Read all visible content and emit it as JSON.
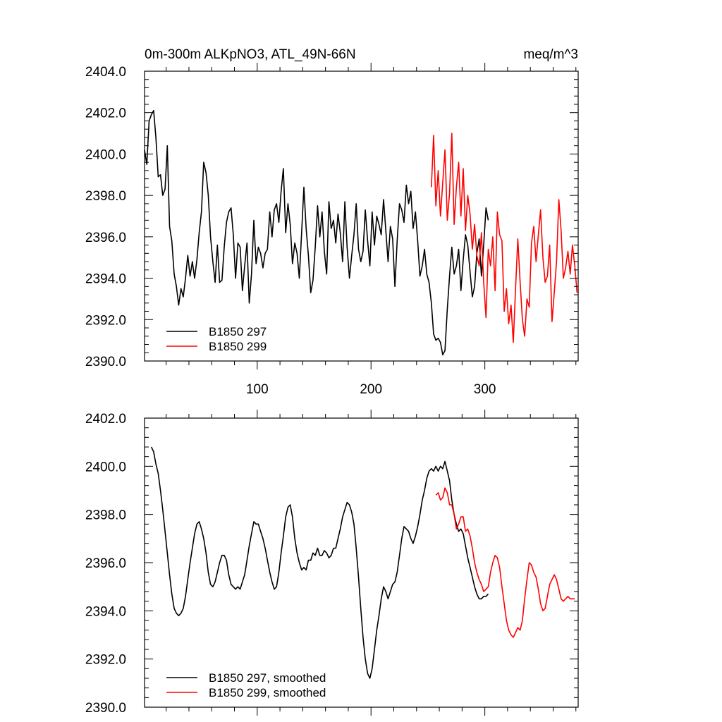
{
  "chart_data": [
    {
      "type": "line",
      "title_left": "0m-300m ALKpNO3, ATL_49N-66N",
      "title_right": "meq/m^3",
      "xlim": [
        1,
        382
      ],
      "ylim": [
        2390,
        2404
      ],
      "yticks": [
        2390.0,
        2392.0,
        2394.0,
        2396.0,
        2398.0,
        2400.0,
        2402.0,
        2404.0
      ],
      "ytick_labels": [
        "2390.0",
        "2392.0",
        "2394.0",
        "2396.0",
        "2398.0",
        "2400.0",
        "2402.0",
        "2404.0"
      ],
      "xticks": [
        100,
        200,
        300
      ],
      "xtick_labels": [
        "100",
        "200",
        "300"
      ],
      "xlabel": "",
      "ylabel": "",
      "legend": [
        "B1850 297",
        "B1850 299"
      ],
      "series": [
        {
          "name": "B1850 297",
          "color": "#000000",
          "x": [
            1,
            3,
            5,
            7,
            9,
            11,
            13,
            15,
            17,
            19,
            21,
            23,
            25,
            27,
            29,
            31,
            33,
            35,
            37,
            39,
            41,
            43,
            45,
            47,
            49,
            51,
            53,
            55,
            57,
            59,
            61,
            63,
            65,
            67,
            69,
            71,
            73,
            75,
            77,
            79,
            81,
            83,
            85,
            87,
            89,
            91,
            93,
            95,
            97,
            99,
            101,
            103,
            105,
            107,
            109,
            111,
            113,
            115,
            117,
            119,
            121,
            123,
            125,
            127,
            129,
            131,
            133,
            135,
            137,
            139,
            141,
            143,
            145,
            147,
            149,
            151,
            153,
            155,
            157,
            159,
            161,
            163,
            165,
            167,
            169,
            171,
            173,
            175,
            177,
            179,
            181,
            183,
            185,
            187,
            189,
            191,
            193,
            195,
            197,
            199,
            201,
            203,
            205,
            207,
            209,
            211,
            213,
            215,
            217,
            219,
            221,
            223,
            225,
            227,
            229,
            231,
            233,
            235,
            237,
            239,
            241,
            243,
            245,
            247,
            249,
            251,
            253,
            255,
            257,
            259,
            261,
            263,
            265,
            267,
            269,
            271,
            273,
            275,
            277,
            279,
            281,
            283,
            285,
            287,
            289,
            291,
            293,
            295,
            297,
            299,
            301,
            303
          ],
          "y": [
            2400.2,
            2399.5,
            2401.6,
            2401.9,
            2402.1,
            2400.8,
            2398.9,
            2399.0,
            2398.0,
            2398.3,
            2400.4,
            2396.5,
            2395.8,
            2394.2,
            2393.6,
            2392.7,
            2393.5,
            2393.1,
            2394.0,
            2395.1,
            2394.1,
            2394.8,
            2394.0,
            2394.9,
            2396.2,
            2397.2,
            2399.6,
            2399.1,
            2398.0,
            2396.0,
            2394.8,
            2393.8,
            2395.6,
            2393.8,
            2393.9,
            2395.5,
            2396.7,
            2397.2,
            2397.4,
            2396.1,
            2394.0,
            2395.7,
            2395.5,
            2393.4,
            2394.6,
            2395.7,
            2392.8,
            2394.2,
            2396.8,
            2394.7,
            2395.5,
            2395.2,
            2394.5,
            2395.2,
            2395.4,
            2397.2,
            2396.0,
            2397.3,
            2397.6,
            2396.7,
            2398.2,
            2399.3,
            2396.2,
            2397.6,
            2396.6,
            2394.7,
            2395.7,
            2395.2,
            2394.0,
            2396.2,
            2398.4,
            2396.4,
            2395.1,
            2393.3,
            2393.9,
            2395.5,
            2397.5,
            2396.0,
            2397.2,
            2395.3,
            2394.2,
            2397.7,
            2396.4,
            2396.8,
            2395.7,
            2397.1,
            2396.2,
            2394.8,
            2397.7,
            2395.5,
            2394.0,
            2395.1,
            2396.1,
            2397.6,
            2395.4,
            2394.8,
            2395.3,
            2397.3,
            2395.8,
            2394.6,
            2397.2,
            2395.6,
            2397.0,
            2396.6,
            2396.1,
            2397.8,
            2396.3,
            2394.8,
            2396.5,
            2395.9,
            2393.6,
            2395.8,
            2397.6,
            2397.3,
            2396.7,
            2398.5,
            2397.6,
            2398.2,
            2396.4,
            2397.2,
            2395.8,
            2394.1,
            2394.6,
            2395.4,
            2394.2,
            2393.8,
            2392.8,
            2391.3,
            2391.0,
            2391.1,
            2390.9,
            2390.3,
            2390.5,
            2392.5,
            2394.1,
            2395.5,
            2394.2,
            2394.6,
            2395.4,
            2393.4,
            2394.9,
            2396.1,
            2395.6,
            2394.3,
            2393.1,
            2393.6,
            2395.2,
            2395.9,
            2394.1,
            2395.6,
            2397.4,
            2396.8
          ]
        },
        {
          "name": "B1850 299",
          "color": "#ff0000",
          "x": [
            253,
            255,
            257,
            259,
            261,
            263,
            265,
            267,
            269,
            271,
            273,
            275,
            277,
            279,
            281,
            283,
            285,
            287,
            289,
            291,
            293,
            295,
            297,
            299,
            301,
            303,
            305,
            307,
            309,
            311,
            313,
            315,
            317,
            319,
            321,
            323,
            325,
            327,
            329,
            331,
            333,
            335,
            337,
            339,
            341,
            343,
            345,
            347,
            349,
            351,
            353,
            355,
            357,
            359,
            361,
            363,
            365,
            367,
            369,
            371,
            373,
            375,
            377,
            379,
            381
          ],
          "y": [
            2398.4,
            2400.9,
            2397.5,
            2399.2,
            2397.0,
            2398.6,
            2400.2,
            2396.8,
            2398.1,
            2401.0,
            2396.6,
            2398.4,
            2399.6,
            2397.0,
            2399.3,
            2396.3,
            2398.0,
            2397.1,
            2395.4,
            2396.6,
            2395.1,
            2394.6,
            2396.2,
            2393.8,
            2392.1,
            2395.4,
            2394.6,
            2396.0,
            2393.4,
            2397.2,
            2396.1,
            2395.8,
            2392.4,
            2393.5,
            2391.8,
            2392.7,
            2390.9,
            2393.5,
            2395.9,
            2393.8,
            2392.0,
            2391.2,
            2393.0,
            2392.6,
            2395.7,
            2396.5,
            2394.8,
            2396.1,
            2397.3,
            2395.0,
            2393.8,
            2394.1,
            2395.6,
            2391.9,
            2393.3,
            2394.8,
            2397.8,
            2396.3,
            2394.0,
            2394.5,
            2395.3,
            2394.2,
            2395.6,
            2394.6,
            2393.3
          ]
        }
      ]
    },
    {
      "type": "line",
      "title_left": "",
      "title_right": "",
      "xlim": [
        1,
        382
      ],
      "ylim": [
        2390,
        2402
      ],
      "yticks": [
        2390.0,
        2392.0,
        2394.0,
        2396.0,
        2398.0,
        2400.0,
        2402.0
      ],
      "ytick_labels": [
        "2390.0",
        "2392.0",
        "2394.0",
        "2396.0",
        "2398.0",
        "2400.0",
        "2402.0"
      ],
      "xticks": [
        100,
        200,
        300
      ],
      "xtick_labels": [],
      "xlabel": "",
      "ylabel": "",
      "legend": [
        "B1850 297, smoothed",
        "B1850 299, smoothed"
      ],
      "series": [
        {
          "name": "B1850 297, smoothed",
          "color": "#000000",
          "x": [
            7,
            9,
            11,
            13,
            15,
            17,
            19,
            21,
            23,
            25,
            27,
            29,
            31,
            33,
            35,
            37,
            39,
            41,
            43,
            45,
            47,
            49,
            51,
            53,
            55,
            57,
            59,
            61,
            63,
            65,
            67,
            69,
            71,
            73,
            75,
            77,
            79,
            81,
            83,
            85,
            87,
            89,
            91,
            93,
            95,
            97,
            99,
            101,
            103,
            105,
            107,
            109,
            111,
            113,
            115,
            117,
            119,
            121,
            123,
            125,
            127,
            129,
            131,
            133,
            135,
            137,
            139,
            141,
            143,
            145,
            147,
            149,
            151,
            153,
            155,
            157,
            159,
            161,
            163,
            165,
            167,
            169,
            171,
            173,
            175,
            177,
            179,
            181,
            183,
            185,
            187,
            189,
            191,
            193,
            195,
            197,
            199,
            201,
            203,
            205,
            207,
            209,
            211,
            213,
            215,
            217,
            219,
            221,
            223,
            225,
            227,
            229,
            231,
            233,
            235,
            237,
            239,
            241,
            243,
            245,
            247,
            249,
            251,
            253,
            255,
            257,
            259,
            261,
            263,
            265,
            267,
            269,
            271,
            273,
            275,
            277,
            279,
            281,
            283,
            285,
            287,
            289,
            291,
            293,
            295,
            297,
            299,
            301,
            303
          ],
          "y": [
            2400.8,
            2400.6,
            2400.1,
            2399.7,
            2399.0,
            2398.2,
            2397.3,
            2396.4,
            2395.5,
            2394.7,
            2394.1,
            2393.9,
            2393.8,
            2393.9,
            2394.1,
            2394.6,
            2395.3,
            2396.0,
            2396.6,
            2397.2,
            2397.6,
            2397.7,
            2397.4,
            2397.0,
            2396.4,
            2395.6,
            2395.1,
            2395.0,
            2395.2,
            2395.6,
            2396.0,
            2396.3,
            2396.3,
            2396.1,
            2395.5,
            2395.1,
            2395.0,
            2394.9,
            2395.0,
            2394.9,
            2395.2,
            2395.5,
            2396.1,
            2396.7,
            2397.2,
            2397.7,
            2397.6,
            2397.6,
            2397.3,
            2397.0,
            2396.6,
            2396.1,
            2395.6,
            2395.2,
            2394.9,
            2395.0,
            2395.6,
            2396.4,
            2397.1,
            2397.9,
            2398.3,
            2398.4,
            2397.9,
            2397.0,
            2396.4,
            2396.0,
            2395.7,
            2395.8,
            2395.7,
            2396.1,
            2396.1,
            2396.4,
            2396.3,
            2396.6,
            2396.3,
            2396.3,
            2396.5,
            2396.4,
            2396.2,
            2396.3,
            2396.6,
            2396.6,
            2397.0,
            2397.4,
            2397.9,
            2398.2,
            2398.5,
            2398.4,
            2398.1,
            2397.6,
            2396.6,
            2395.4,
            2394.1,
            2392.9,
            2392.0,
            2391.4,
            2391.2,
            2391.6,
            2392.4,
            2393.2,
            2393.8,
            2394.5,
            2395.0,
            2394.8,
            2394.5,
            2394.8,
            2395.1,
            2395.2,
            2395.6,
            2396.3,
            2397.0,
            2397.5,
            2397.4,
            2397.3,
            2397.0,
            2396.8,
            2397.1,
            2397.5,
            2398.0,
            2398.6,
            2399.0,
            2399.5,
            2399.8,
            2399.9,
            2399.8,
            2400.0,
            2399.8,
            2400.0,
            2399.9,
            2400.2,
            2399.8,
            2399.4,
            2398.6,
            2398.0,
            2397.6,
            2397.3,
            2397.4,
            2397.2,
            2396.7,
            2396.2,
            2395.8,
            2395.4,
            2395.0,
            2394.7,
            2394.5,
            2394.5,
            2394.6,
            2394.6,
            2394.7
          ]
        },
        {
          "name": "B1850 299, smoothed",
          "color": "#ff0000",
          "x": [
            257,
            259,
            261,
            263,
            265,
            267,
            269,
            271,
            273,
            275,
            277,
            279,
            281,
            283,
            285,
            287,
            289,
            291,
            293,
            295,
            297,
            299,
            301,
            303,
            305,
            307,
            309,
            311,
            313,
            315,
            317,
            319,
            321,
            323,
            325,
            327,
            329,
            331,
            333,
            335,
            337,
            339,
            341,
            343,
            345,
            347,
            349,
            351,
            353,
            355,
            357,
            359,
            361,
            363,
            365,
            367,
            369,
            371,
            373,
            375,
            377,
            379
          ],
          "y": [
            2398.8,
            2398.9,
            2398.6,
            2398.7,
            2399.1,
            2398.9,
            2398.4,
            2398.4,
            2398.0,
            2397.4,
            2397.6,
            2397.9,
            2397.9,
            2397.3,
            2397.4,
            2397.1,
            2396.6,
            2396.0,
            2395.6,
            2395.3,
            2395.1,
            2394.8,
            2394.9,
            2395.0,
            2395.6,
            2396.0,
            2396.3,
            2396.2,
            2395.8,
            2395.0,
            2394.3,
            2393.6,
            2393.2,
            2393.0,
            2392.9,
            2393.1,
            2393.3,
            2393.2,
            2393.6,
            2394.5,
            2395.3,
            2396.0,
            2395.9,
            2395.6,
            2395.4,
            2394.9,
            2394.3,
            2394.0,
            2394.1,
            2394.6,
            2395.1,
            2395.3,
            2395.5,
            2395.3,
            2394.9,
            2394.5,
            2394.4,
            2394.5,
            2394.6,
            2394.5,
            2394.5,
            2394.5
          ]
        }
      ]
    }
  ]
}
